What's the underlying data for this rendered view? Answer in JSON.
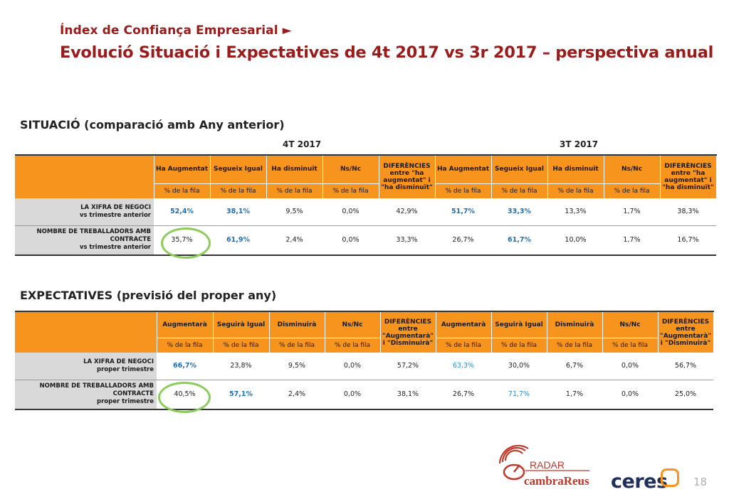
{
  "header": {
    "kicker": "Índex de Confiança Empresarial ►",
    "title": "Evolució Situació i Expectatives de 4t 2017 vs 3r 2017 – perspectiva anual"
  },
  "situacio": {
    "section_title": "SITUACIÓ (comparació amb Any anterior)",
    "period_a": "4T 2017",
    "period_b": "3T 2017",
    "headers": [
      "Ha Augmentat",
      "Segueix Igual",
      "Ha disminuït",
      "Ns/Nc",
      "DIFERÈNCIES entre \"ha augmentat\" i \"ha disminuït\"",
      "Ha Augmentat",
      "Segueix Igual",
      "Ha disminuït",
      "Ns/Nc",
      "DIFERÈNCIES entre \"ha augmentat\" i \"ha disminuït\""
    ],
    "sub": "% de la fila",
    "rows": [
      {
        "label1": "LA XIFRA DE NEGOCI",
        "label2": "vs trimestre anterior",
        "label3": "",
        "values": [
          "52,4%",
          "38,1%",
          "9,5%",
          "0,0%",
          "42,9%",
          "51,7%",
          "33,3%",
          "13,3%",
          "1,7%",
          "38,3%"
        ]
      },
      {
        "label1": "NOMBRE DE TREBALLADORS AMB",
        "label2": "CONTRACTE",
        "label3": "vs trimestre anterior",
        "values": [
          "35,7%",
          "61,9%",
          "2,4%",
          "0,0%",
          "33,3%",
          "26,7%",
          "61,7%",
          "10,0%",
          "1,7%",
          "16,7%"
        ]
      }
    ]
  },
  "expectatives": {
    "section_title": "EXPECTATIVES (previsió del proper any)",
    "headers": [
      "Augmentarà",
      "Seguirà Igual",
      "Disminuirà",
      "Ns/Nc",
      "DIFERÈNCIES entre \"Augmentarà\" i \"Disminuirà\"",
      "Augmentarà",
      "Seguirà Igual",
      "Disminuirà",
      "Ns/Nc",
      "DIFERÈNCIES entre \"Augmentarà\" i \"Disminuirà\""
    ],
    "sub": "% de la fila",
    "rows": [
      {
        "label1": "LA XIFRA DE NEGOCI",
        "label2": "proper trimestre",
        "label3": "",
        "values": [
          "66,7%",
          "23,8%",
          "9,5%",
          "0,0%",
          "57,2%",
          "63,3%",
          "30,0%",
          "6,7%",
          "0,0%",
          "56,7%"
        ]
      },
      {
        "label1": "NOMBRE DE TREBALLADORS AMB",
        "label2": "CONTRACTE",
        "label3": "proper trimestre",
        "values": [
          "40,5%",
          "57,1%",
          "2,4%",
          "0,0%",
          "38,1%",
          "26,7%",
          "71,7%",
          "1,7%",
          "0,0%",
          "25,0%"
        ]
      }
    ]
  },
  "footer": {
    "radar_text": "RADAR",
    "cambra_text": "cambraReus",
    "ceres_text": "ceres",
    "page_number": "18"
  },
  "colors": {
    "title": "#9b1b1b",
    "header_fill": "#f7941d",
    "highlight_blue": "#1f6fb2",
    "circle_green": "#8ccd5a",
    "row_label_fill": "#d9d9d9"
  }
}
